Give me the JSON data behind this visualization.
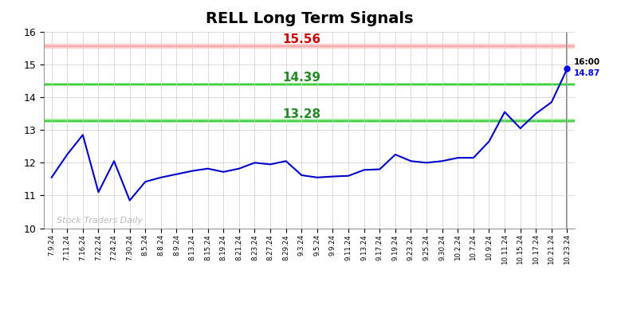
{
  "title": "RELL Long Term Signals",
  "x_labels": [
    "7.9.24",
    "7.11.24",
    "7.16.24",
    "7.22.24",
    "7.24.24",
    "7.30.24",
    "8.5.24",
    "8.8.24",
    "8.9.24",
    "8.13.24",
    "8.15.24",
    "8.19.24",
    "8.21.24",
    "8.23.24",
    "8.27.24",
    "8.29.24",
    "9.3.24",
    "9.5.24",
    "9.9.24",
    "9.11.24",
    "9.13.24",
    "9.17.24",
    "9.19.24",
    "9.23.24",
    "9.25.24",
    "9.30.24",
    "10.2.24",
    "10.7.24",
    "10.9.24",
    "10.11.24",
    "10.15.24",
    "10.17.24",
    "10.21.24",
    "10.23.24"
  ],
  "y_values": [
    11.55,
    12.25,
    12.85,
    11.1,
    12.05,
    10.85,
    11.42,
    11.55,
    11.65,
    11.75,
    11.82,
    11.72,
    11.82,
    12.0,
    11.95,
    12.05,
    11.62,
    11.55,
    11.58,
    11.6,
    11.78,
    11.8,
    12.25,
    12.05,
    12.0,
    12.05,
    12.15,
    12.15,
    12.65,
    13.55,
    13.05,
    13.5,
    13.85,
    14.87
  ],
  "last_price": "14.87",
  "last_time": "16:00",
  "hline_red": 15.56,
  "hline_green1": 14.39,
  "hline_green2": 13.28,
  "hline_red_fill_color": "#ffcccc",
  "hline_red_line_color": "#ffaaaa",
  "hline_red_label_color": "#cc0000",
  "hline_green_fill_color": "#99ee99",
  "hline_green_line_color": "#44cc44",
  "hline_green_label_color": "#228B22",
  "line_color": "#0000cc",
  "dot_color": "#0000ee",
  "watermark": "Stock Traders Daily",
  "ylim_min": 10,
  "ylim_max": 16,
  "title_fontsize": 14,
  "background_color": "#ffffff",
  "grid_color": "#cccccc",
  "label_fontsize": 11,
  "hline_thickness": 2.5,
  "vline_color": "#888888"
}
